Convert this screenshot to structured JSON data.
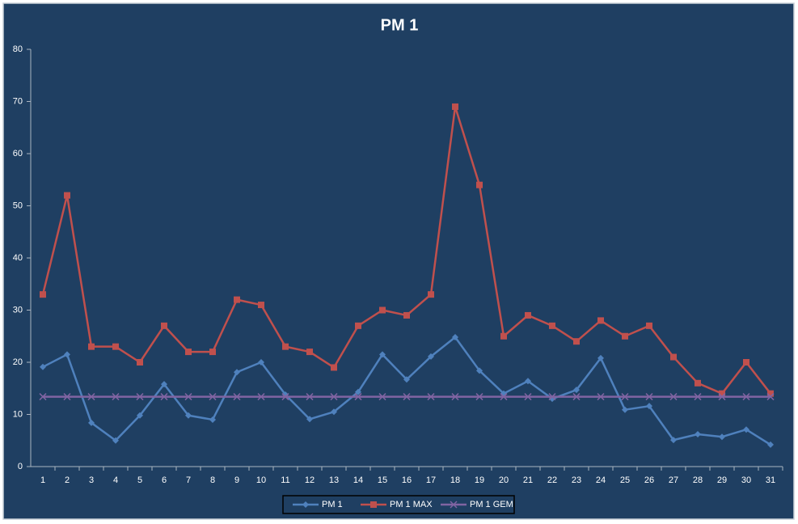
{
  "chart_data": {
    "type": "line",
    "title": "PM 1",
    "categories": [
      "1",
      "2",
      "3",
      "4",
      "5",
      "6",
      "7",
      "8",
      "9",
      "10",
      "11",
      "12",
      "13",
      "14",
      "15",
      "16",
      "17",
      "18",
      "19",
      "20",
      "21",
      "22",
      "23",
      "24",
      "25",
      "26",
      "27",
      "28",
      "29",
      "30",
      "31"
    ],
    "series": [
      {
        "name": "PM 1",
        "color": "#4f81bd",
        "marker": "diamond",
        "values": [
          19.1,
          21.5,
          8.4,
          5,
          9.8,
          15.8,
          9.8,
          9,
          18.1,
          20,
          13.8,
          9.1,
          10.5,
          14.3,
          21.5,
          16.7,
          21.1,
          24.8,
          18.4,
          14,
          16.4,
          13,
          14.7,
          20.8,
          10.9,
          11.6,
          5.1,
          6.2,
          5.7,
          7.1,
          4.2
        ]
      },
      {
        "name": "PM 1 MAX",
        "color": "#c0504d",
        "marker": "square",
        "values": [
          33,
          52,
          23,
          23,
          20,
          27,
          22,
          22,
          32,
          31,
          23,
          22,
          19,
          27,
          30,
          29,
          33,
          69,
          54,
          25,
          29,
          27,
          24,
          28,
          25,
          27,
          21,
          16,
          14,
          20,
          14
        ]
      },
      {
        "name": "PM 1 GEM",
        "color": "#8064a2",
        "marker": "x",
        "values": [
          13.4,
          13.4,
          13.4,
          13.4,
          13.4,
          13.4,
          13.4,
          13.4,
          13.4,
          13.4,
          13.4,
          13.4,
          13.4,
          13.4,
          13.4,
          13.4,
          13.4,
          13.4,
          13.4,
          13.4,
          13.4,
          13.4,
          13.4,
          13.4,
          13.4,
          13.4,
          13.4,
          13.4,
          13.4,
          13.4,
          13.4
        ]
      }
    ],
    "ylim": [
      0,
      80
    ],
    "yticks": [
      0,
      10,
      20,
      30,
      40,
      50,
      60,
      70,
      80
    ],
    "grid": false,
    "legend": "bottom"
  }
}
